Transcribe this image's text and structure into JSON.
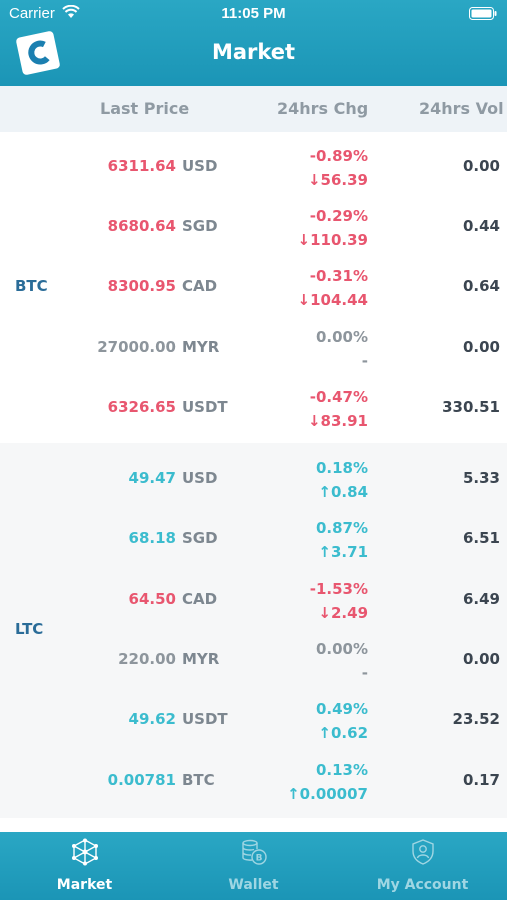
{
  "status_bar": {
    "carrier": "Carrier",
    "time": "11:05 PM"
  },
  "header": {
    "title": "Market",
    "logo_letter": "C"
  },
  "columns": {
    "last_price": "Last Price",
    "change": "24hrs Chg",
    "volume": "24hrs Vol"
  },
  "colors": {
    "accent": "#1b95b6",
    "up": "#3bbcce",
    "down": "#e8566f",
    "flat": "#8d959c"
  },
  "groups": [
    {
      "coin": "BTC",
      "rows": [
        {
          "price": "6311.64",
          "currency": "USD",
          "pct": "-0.89%",
          "diff": "↓56.39",
          "vol": "0.00",
          "trend": "down"
        },
        {
          "price": "8680.64",
          "currency": "SGD",
          "pct": "-0.29%",
          "diff": "↓110.39",
          "vol": "0.44",
          "trend": "down"
        },
        {
          "price": "8300.95",
          "currency": "CAD",
          "pct": "-0.31%",
          "diff": "↓104.44",
          "vol": "0.64",
          "trend": "down"
        },
        {
          "price": "27000.00",
          "currency": "MYR",
          "pct": "0.00%",
          "diff": "-",
          "vol": "0.00",
          "trend": "flat"
        },
        {
          "price": "6326.65",
          "currency": "USDT",
          "pct": "-0.47%",
          "diff": "↓83.91",
          "vol": "330.51",
          "trend": "down"
        }
      ]
    },
    {
      "coin": "LTC",
      "rows": [
        {
          "price": "49.47",
          "currency": "USD",
          "pct": "0.18%",
          "diff": "↑0.84",
          "vol": "5.33",
          "trend": "up"
        },
        {
          "price": "68.18",
          "currency": "SGD",
          "pct": "0.87%",
          "diff": "↑3.71",
          "vol": "6.51",
          "trend": "up"
        },
        {
          "price": "64.50",
          "currency": "CAD",
          "pct": "-1.53%",
          "diff": "↓2.49",
          "vol": "6.49",
          "trend": "down"
        },
        {
          "price": "220.00",
          "currency": "MYR",
          "pct": "0.00%",
          "diff": "-",
          "vol": "0.00",
          "trend": "flat"
        },
        {
          "price": "49.62",
          "currency": "USDT",
          "pct": "0.49%",
          "diff": "↑0.62",
          "vol": "23.52",
          "trend": "up"
        },
        {
          "price": "0.00781",
          "currency": "BTC",
          "pct": "0.13%",
          "diff": "↑0.00007",
          "vol": "0.17",
          "trend": "up"
        }
      ]
    }
  ],
  "tabs": [
    {
      "label": "Market",
      "icon": "network-icon",
      "active": true
    },
    {
      "label": "Wallet",
      "icon": "coins-icon",
      "active": false
    },
    {
      "label": "My Account",
      "icon": "shield-user-icon",
      "active": false
    }
  ]
}
